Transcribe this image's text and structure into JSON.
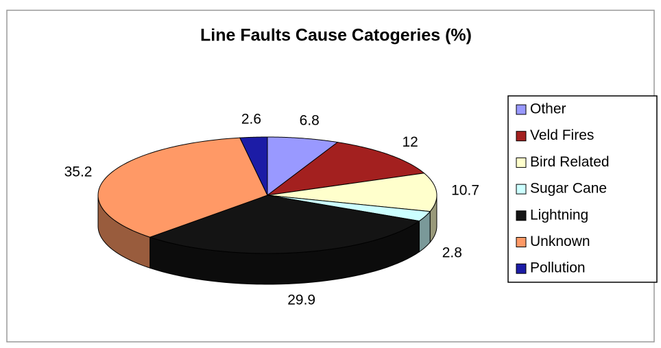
{
  "chart_data": {
    "type": "pie3d",
    "title": "Line Faults Cause Catogeries (%)",
    "categories": [
      "Other",
      "Veld Fires",
      "Bird Related",
      "Sugar Cane",
      "Lightning",
      "Unknown",
      "Pollution"
    ],
    "values": [
      6.8,
      12,
      10.7,
      2.8,
      29.9,
      35.2,
      2.6
    ],
    "colors": [
      "#9999ff",
      "#a3201f",
      "#ffffcc",
      "#ccffff",
      "#141414",
      "#ff9966",
      "#1c1ca6"
    ],
    "legend": "right"
  }
}
